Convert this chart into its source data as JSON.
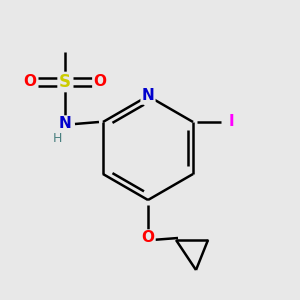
{
  "bg_color": "#e8e8e8",
  "atom_colors": {
    "C": "#000000",
    "N": "#0000cc",
    "O": "#ff0000",
    "S": "#cccc00",
    "I": "#ff00ff",
    "H": "#4a8080"
  },
  "bond_color": "#000000",
  "bond_width": 1.8,
  "font_size": 11
}
